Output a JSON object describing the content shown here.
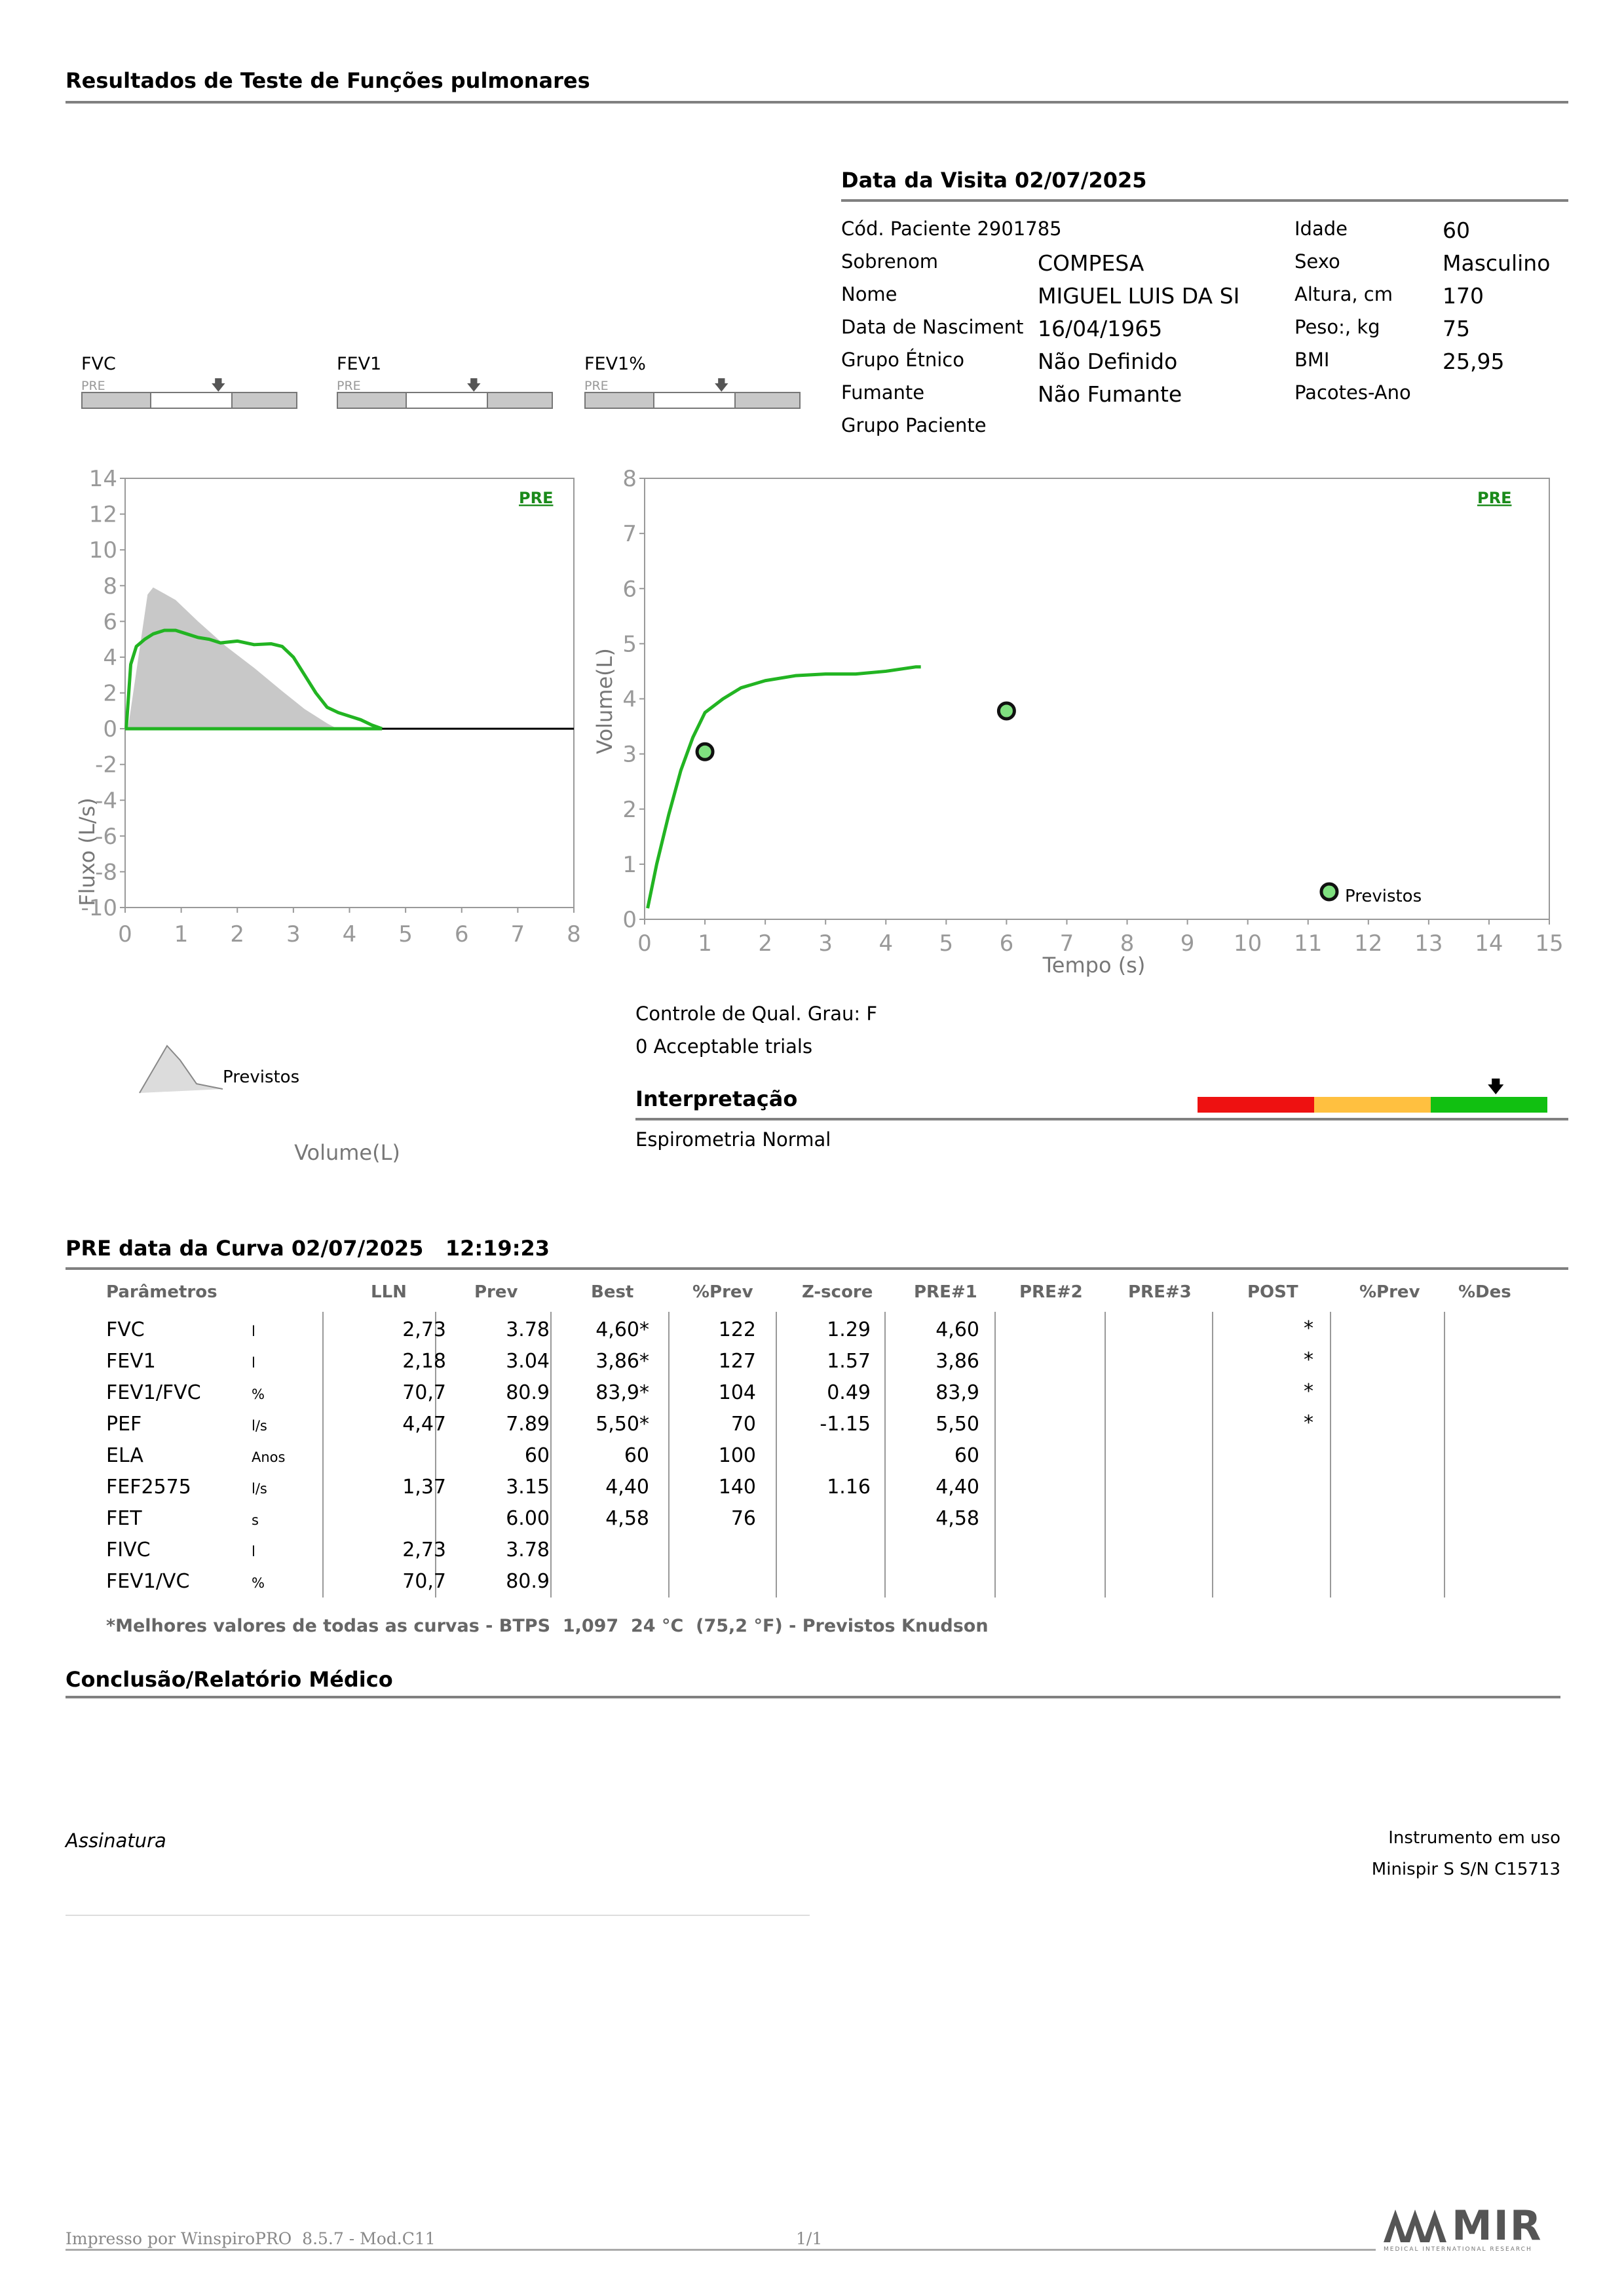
{
  "report_title": "Resultados de Teste de Funções pulmonares",
  "visit": {
    "title": "Data da Visita 02/07/2025",
    "left": [
      {
        "label": "Cód. Paciente 2901785",
        "value": ""
      },
      {
        "label": "Sobrenom",
        "value": "COMPESA"
      },
      {
        "label": "Nome",
        "value": "MIGUEL LUIS DA SI"
      },
      {
        "label": "Data de Nasciment",
        "value": "16/04/1965"
      },
      {
        "label": "Grupo Étnico",
        "value": "Não Definido"
      },
      {
        "label": "Fumante",
        "value": "Não Fumante"
      },
      {
        "label": "Grupo Paciente",
        "value": ""
      }
    ],
    "right": [
      {
        "label": "Idade",
        "value": "60"
      },
      {
        "label": "Sexo",
        "value": "Masculino"
      },
      {
        "label": "Altura, cm",
        "value": "170"
      },
      {
        "label": "Peso:, kg",
        "value": "75"
      },
      {
        "label": "BMI",
        "value": "25,95"
      },
      {
        "label": "Pacotes-Ano",
        "value": ""
      }
    ]
  },
  "mini_indicators": [
    {
      "label": "FVC",
      "tag": "PRE"
    },
    {
      "label": "FEV1",
      "tag": "PRE"
    },
    {
      "label": "FEV1%",
      "tag": "PRE"
    }
  ],
  "flow_chart": {
    "tag": "PRE",
    "xlabel": "Volume(L)",
    "ylabel": "Fluxo (L/s)",
    "predicted_label": "Previstos"
  },
  "volume_chart": {
    "tag": "PRE",
    "xlabel": "Tempo (s)",
    "ylabel": "Volume(L)",
    "predicted_label": "Previstos"
  },
  "chart_data": [
    {
      "type": "line",
      "name_hint": "flow-volume",
      "xlim": [
        0,
        8
      ],
      "ylim": [
        -10,
        14
      ],
      "xticks": [
        0,
        1,
        2,
        3,
        4,
        5,
        6,
        7,
        8
      ],
      "yticks": [
        -10,
        -8,
        -6,
        -4,
        -2,
        0,
        2,
        4,
        6,
        8,
        10,
        12,
        14
      ],
      "xlabel": "Volume(L)",
      "ylabel": "Fluxo (L/s)",
      "series": [
        {
          "role": "predicted-area",
          "color": "#c8c8c8",
          "x": [
            0.05,
            0.4,
            0.5,
            0.9,
            1.3,
            1.8,
            2.3,
            2.8,
            3.2,
            3.6,
            3.78
          ],
          "y": [
            0,
            7.5,
            7.9,
            7.2,
            6.0,
            4.6,
            3.4,
            2.1,
            1.1,
            0.3,
            0
          ]
        },
        {
          "role": "measured",
          "color": "#22b422",
          "x": [
            0.02,
            0.1,
            0.2,
            0.35,
            0.5,
            0.7,
            0.9,
            1.1,
            1.3,
            1.5,
            1.7,
            2.0,
            2.3,
            2.6,
            2.8,
            3.0,
            3.2,
            3.4,
            3.6,
            3.8,
            4.0,
            4.2,
            4.4,
            4.58
          ],
          "y": [
            0,
            3.6,
            4.6,
            5.0,
            5.3,
            5.5,
            5.5,
            5.3,
            5.1,
            5.0,
            4.8,
            4.9,
            4.7,
            4.75,
            4.6,
            4.0,
            3.0,
            2.0,
            1.2,
            0.9,
            0.7,
            0.5,
            0.2,
            0
          ]
        }
      ]
    },
    {
      "type": "line",
      "name_hint": "volume-time",
      "xlim": [
        0,
        15
      ],
      "ylim": [
        0,
        8
      ],
      "xticks": [
        0,
        1,
        2,
        3,
        4,
        5,
        6,
        7,
        8,
        9,
        10,
        11,
        12,
        13,
        14,
        15
      ],
      "yticks": [
        0,
        1,
        2,
        3,
        4,
        5,
        6,
        7,
        8
      ],
      "xlabel": "Tempo (s)",
      "ylabel": "Volume(L)",
      "series": [
        {
          "role": "measured",
          "color": "#22b422",
          "x": [
            0.05,
            0.2,
            0.4,
            0.6,
            0.8,
            1.0,
            1.3,
            1.6,
            2.0,
            2.5,
            3.0,
            3.5,
            4.0,
            4.5,
            4.58
          ],
          "y": [
            0.2,
            1.0,
            1.9,
            2.7,
            3.3,
            3.75,
            4.0,
            4.2,
            4.33,
            4.42,
            4.45,
            4.45,
            4.5,
            4.58,
            4.58
          ]
        },
        {
          "role": "predicted-points",
          "color": "#7fe07f",
          "x": [
            1.0,
            6.0,
            11.35
          ],
          "y": [
            3.04,
            3.78,
            0.5
          ]
        }
      ]
    }
  ],
  "quality": {
    "grade": "Controle de Qual. Grau: F",
    "trials": "0 Acceptable trials"
  },
  "interpretation": {
    "title": "Interpretação",
    "text": "Espirometria Normal",
    "scale_colors": [
      "#ee1111",
      "#ffc040",
      "#11c011"
    ],
    "indicator_position": 0.85
  },
  "results": {
    "title": "PRE data da Curva 02/07/2025   12:19:23",
    "headers": [
      "Parâmetros",
      "LLN",
      "Prev",
      "Best",
      "%Prev",
      "Z-score",
      "PRE#1",
      "PRE#2",
      "PRE#3",
      "POST",
      "%Prev",
      "%Des"
    ],
    "rows": [
      {
        "param": "FVC",
        "unit": "l",
        "lln": "2,73",
        "prev": "3.78",
        "best": "4,60*",
        "pctprev": "122",
        "z": "1.29",
        "pre1": "4,60",
        "post": "*"
      },
      {
        "param": "FEV1",
        "unit": "l",
        "lln": "2,18",
        "prev": "3.04",
        "best": "3,86*",
        "pctprev": "127",
        "z": "1.57",
        "pre1": "3,86",
        "post": "*"
      },
      {
        "param": "FEV1/FVC",
        "unit": "%",
        "lln": "70,7",
        "prev": "80.9",
        "best": "83,9*",
        "pctprev": "104",
        "z": "0.49",
        "pre1": "83,9",
        "post": "*"
      },
      {
        "param": "PEF",
        "unit": "l/s",
        "lln": "4,47",
        "prev": "7.89",
        "best": "5,50*",
        "pctprev": "70",
        "z": "-1.15",
        "pre1": "5,50",
        "post": "*"
      },
      {
        "param": "ELA",
        "unit": "Anos",
        "lln": "",
        "prev": "60",
        "best": "60",
        "pctprev": "100",
        "z": "",
        "pre1": "60",
        "post": ""
      },
      {
        "param": "FEF2575",
        "unit": "l/s",
        "lln": "1,37",
        "prev": "3.15",
        "best": "4,40",
        "pctprev": "140",
        "z": "1.16",
        "pre1": "4,40",
        "post": ""
      },
      {
        "param": "FET",
        "unit": "s",
        "lln": "",
        "prev": "6.00",
        "best": "4,58",
        "pctprev": "76",
        "z": "",
        "pre1": "4,58",
        "post": ""
      },
      {
        "param": "FIVC",
        "unit": "l",
        "lln": "2,73",
        "prev": "3.78",
        "best": "",
        "pctprev": "",
        "z": "",
        "pre1": "",
        "post": ""
      },
      {
        "param": "FEV1/VC",
        "unit": "%",
        "lln": "70,7",
        "prev": "80.9",
        "best": "",
        "pctprev": "",
        "z": "",
        "pre1": "",
        "post": ""
      }
    ],
    "footnote": "*Melhores valores de todas as curvas - BTPS  1,097  24 °C  (75,2 °F) - Previstos Knudson"
  },
  "conclusion_title": "Conclusão/Relatório Médico",
  "signature_label": "Assinatura",
  "instrument": {
    "label": "Instrumento em uso",
    "value": "Minispir S S/N C15713"
  },
  "footer": {
    "printed_by": "Impresso por WinspiroPRO  8.5.7 - Mod.C11",
    "page": "1/1",
    "logo_text": "MIR",
    "logo_sub": "MEDICAL INTERNATIONAL RESEARCH"
  }
}
